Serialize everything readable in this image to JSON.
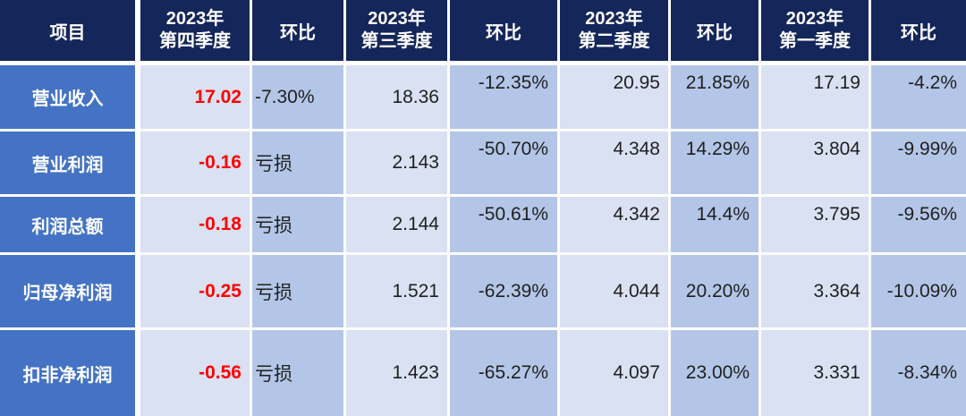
{
  "chart_data": {
    "type": "table",
    "title": "",
    "columns": [
      "项目",
      "2023年第四季度",
      "环比",
      "2023年第三季度",
      "环比",
      "2023年第二季度",
      "环比",
      "2023年第一季度",
      "环比"
    ],
    "rows": [
      [
        "营业收入",
        "17.02",
        "-7.30%",
        "18.36",
        "-12.35%",
        "20.95",
        "21.85%",
        "17.19",
        "-4.2%"
      ],
      [
        "营业利润",
        "-0.16",
        "亏损",
        "2.143",
        "-50.70%",
        "4.348",
        "14.29%",
        "3.804",
        "-9.99%"
      ],
      [
        "利润总额",
        "-0.18",
        "亏损",
        "2.144",
        "-50.61%",
        "4.342",
        "14.4%",
        "3.795",
        "-9.56%"
      ],
      [
        "归母净利润",
        "-0.25",
        "亏损",
        "1.521",
        "-62.39%",
        "4.044",
        "20.20%",
        "3.364",
        "-10.09%"
      ],
      [
        "扣非净利润",
        "-0.56",
        "亏损",
        "1.423",
        "-65.27%",
        "4.097",
        "23.00%",
        "3.331",
        "-8.34%"
      ]
    ]
  },
  "table": {
    "header": {
      "item_col": "项目",
      "qoq_label": "环比",
      "quarter_cols": [
        {
          "line1": "2023年",
          "line2": "第四季度"
        },
        {
          "line1": "2023年",
          "line2": "第三季度"
        },
        {
          "line1": "2023年",
          "line2": "第二季度"
        },
        {
          "line1": "2023年",
          "line2": "第一季度"
        }
      ]
    },
    "rows": [
      {
        "item": "营业收入",
        "q4": "17.02",
        "q4_qoq": "-7.30%",
        "q3": "18.36",
        "q3_qoq": "-12.35%",
        "q2": "20.95",
        "q2_qoq": "21.85%",
        "q1": "17.19",
        "q1_qoq": "-4.2%"
      },
      {
        "item": "营业利润",
        "q4": "-0.16",
        "q4_qoq": "亏损",
        "q3": "2.143",
        "q3_qoq": "-50.70%",
        "q2": "4.348",
        "q2_qoq": "14.29%",
        "q1": "3.804",
        "q1_qoq": "-9.99%"
      },
      {
        "item": "利润总额",
        "q4": "-0.18",
        "q4_qoq": "亏损",
        "q3": "2.144",
        "q3_qoq": "-50.61%",
        "q2": "4.342",
        "q2_qoq": "14.4%",
        "q1": "3.795",
        "q1_qoq": "-9.56%"
      },
      {
        "item": "归母净利润",
        "q4": "-0.25",
        "q4_qoq": "亏损",
        "q3": "1.521",
        "q3_qoq": "-62.39%",
        "q2": "4.044",
        "q2_qoq": "20.20%",
        "q1": "3.364",
        "q1_qoq": "-10.09%"
      },
      {
        "item": "扣非净利润",
        "q4": "-0.56",
        "q4_qoq": "亏损",
        "q3": "1.423",
        "q3_qoq": "-65.27%",
        "q2": "4.097",
        "q2_qoq": "23.00%",
        "q1": "3.331",
        "q1_qoq": "-8.34%"
      }
    ],
    "colors": {
      "header_bg": "#14265A",
      "row_label_bg": "#4472C4",
      "value_cell_bg": "#D9E1F2",
      "qoq_cell_bg": "#B4C6E7",
      "q4_value_text": "#FF0000",
      "header_text": "#FFFFFF",
      "body_text": "#1F1F1F",
      "grid_gap": "#FFFFFF"
    }
  }
}
